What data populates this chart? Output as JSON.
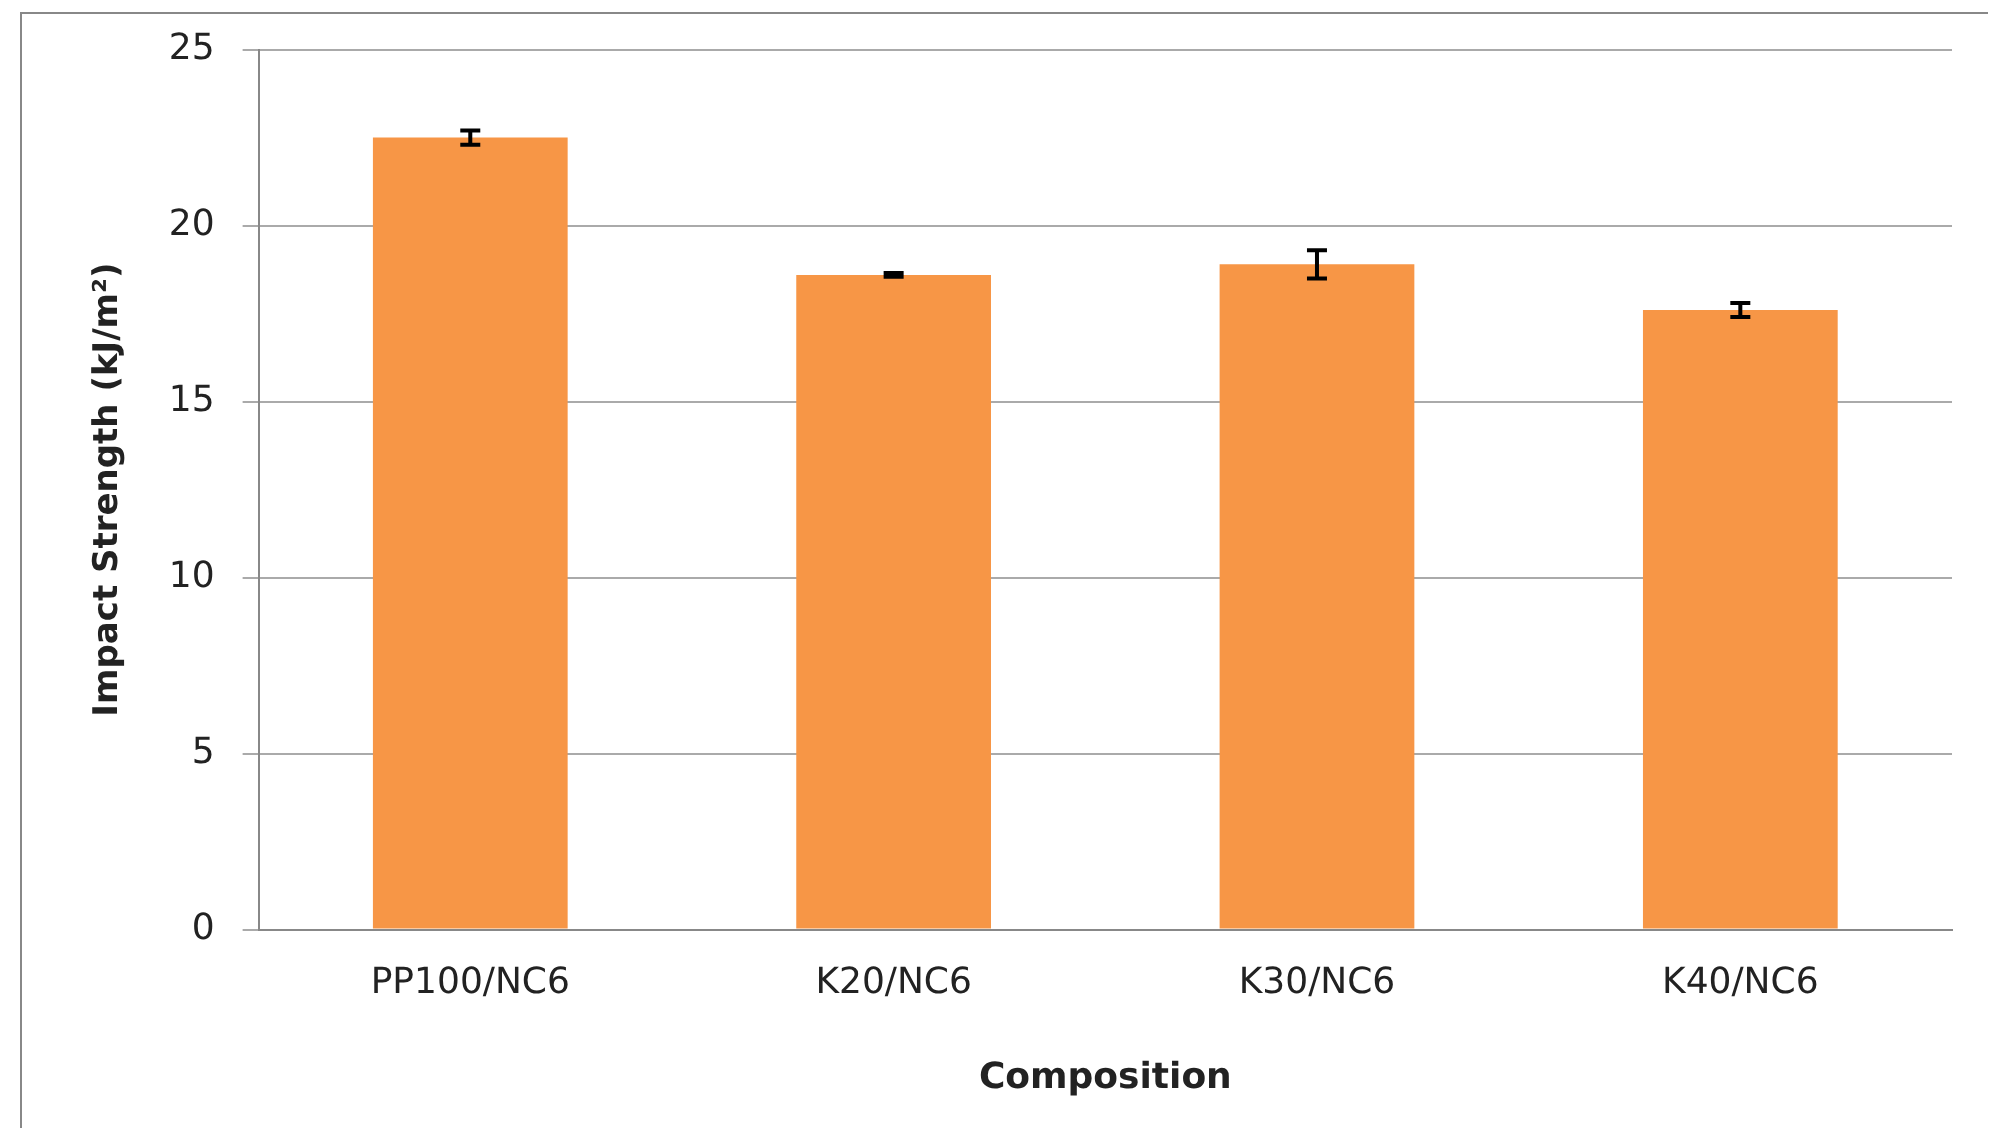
{
  "chart_data": {
    "type": "bar",
    "xlabel": "Composition",
    "ylabel": "Impact Strength (kJ/m²)",
    "categories": [
      "PP100/NC6",
      "K20/NC6",
      "K30/NC6",
      "K40/NC6"
    ],
    "values": [
      22.5,
      18.6,
      18.9,
      17.6
    ],
    "errors": [
      0.2,
      0.05,
      0.4,
      0.2
    ],
    "color": "#f79646",
    "ylim": [
      0,
      25
    ],
    "yticks": [
      0,
      5,
      10,
      15,
      20,
      25
    ],
    "grid": "y",
    "legend": false
  }
}
